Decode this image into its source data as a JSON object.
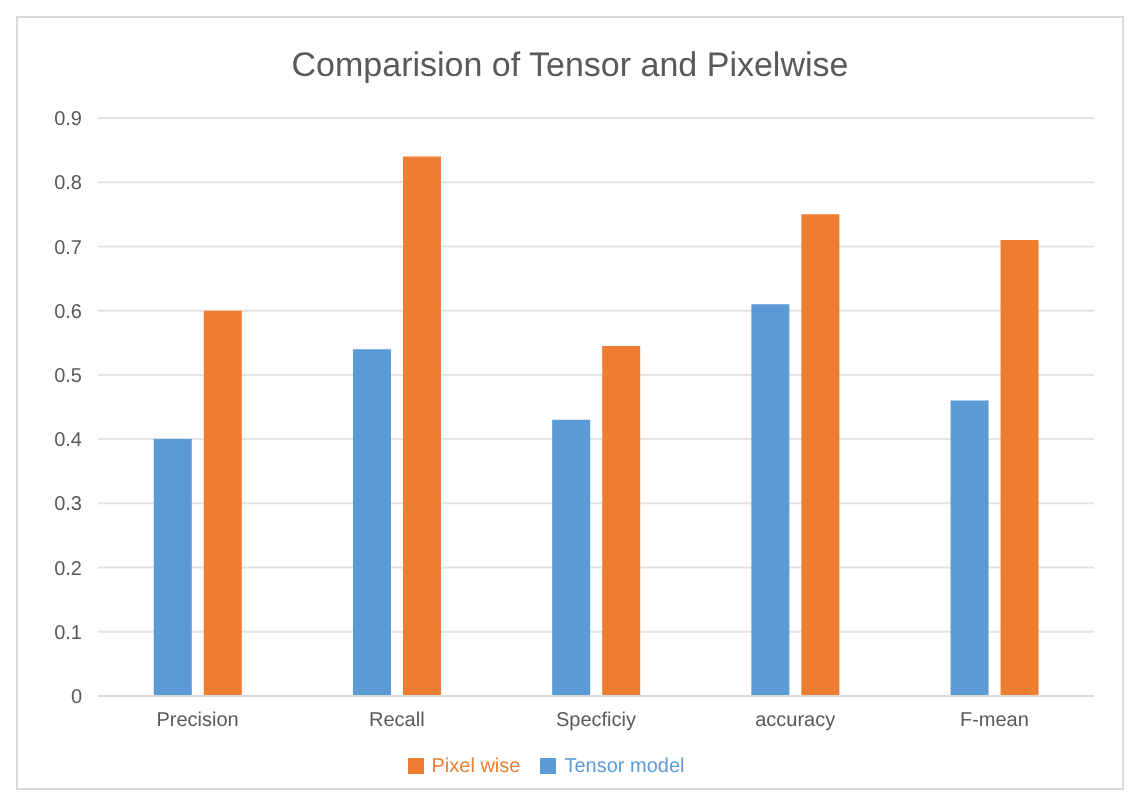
{
  "chart_data": {
    "type": "bar",
    "title": "Comparision of Tensor and Pixelwise",
    "categories": [
      "Precision",
      "Recall",
      "Specficiy",
      "accuracy",
      "F-mean"
    ],
    "series": [
      {
        "name": "Tensor model",
        "color": "#5b9bd5",
        "values": [
          0.4,
          0.54,
          0.43,
          0.61,
          0.46
        ]
      },
      {
        "name": "Pixel wise",
        "color": "#ed7d31",
        "values": [
          0.6,
          0.84,
          0.545,
          0.75,
          0.71
        ]
      }
    ],
    "ylim": [
      0,
      0.9
    ],
    "yticks": [
      0,
      0.1,
      0.2,
      0.3,
      0.4,
      0.5,
      0.6,
      0.7,
      0.8,
      0.9
    ],
    "grid": "y",
    "legend": "bottom"
  }
}
